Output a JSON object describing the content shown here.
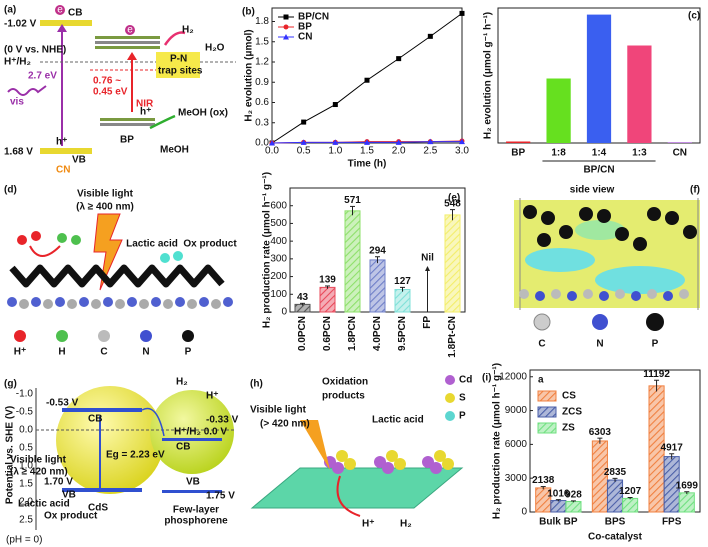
{
  "chart_data": [
    {
      "type": "line",
      "panel_label": "(b)",
      "xlabel": "Time (h)",
      "ylabel": "H₂ evolution (μmol)",
      "x": [
        0,
        0.5,
        1,
        1.5,
        2,
        2.5,
        3
      ],
      "series": [
        {
          "name": "BP/CN",
          "color": "#000000",
          "marker": "square",
          "values": [
            0,
            0.31,
            0.57,
            0.93,
            1.25,
            1.58,
            1.92
          ]
        },
        {
          "name": "BP",
          "color": "#e8242a",
          "marker": "circle",
          "values": [
            0,
            0.01,
            0.01,
            0.02,
            0.02,
            0.02,
            0.03
          ]
        },
        {
          "name": "CN",
          "color": "#3333ff",
          "marker": "triangle",
          "values": [
            0,
            0.01,
            0.01,
            0.01,
            0.01,
            0.02,
            0.02
          ]
        }
      ],
      "xlim": [
        0,
        3
      ],
      "xticks": [
        {
          "value": 0,
          "label": "0.0"
        },
        0.5,
        {
          "value": 1,
          "label": "1.0"
        },
        1.5,
        {
          "value": 2,
          "label": "2.0"
        },
        2.5,
        {
          "value": 3,
          "label": "3.0"
        }
      ],
      "ylim": [
        0,
        2.0
      ],
      "yticks": [
        {
          "value": 0,
          "label": "0.0"
        },
        0.3,
        0.6,
        0.9,
        1.2,
        1.5,
        1.8
      ],
      "legend": "upper left"
    },
    {
      "type": "bar",
      "panel_label": "(c)",
      "ylabel": "H₂ evolution (μmol g⁻¹ h⁻¹)",
      "categories": [
        "BP",
        "1:8",
        "1:4",
        "1:3",
        "CN"
      ],
      "group_label": "BP/CN",
      "values": [
        5,
        215,
        428,
        325,
        2
      ],
      "colors": [
        "#e8242a",
        "#66e01f",
        "#3a5ff0",
        "#f0457a",
        "#9b3fd0"
      ],
      "ylim": [
        0,
        450
      ]
    },
    {
      "type": "bar",
      "panel_label": "(e)",
      "ylabel": "H₂ production rate (μmol h⁻¹ g⁻¹)",
      "categories": [
        "0.0PCN",
        "0.6PCN",
        "1.8PCN",
        "4.0PCN",
        "9.5PCN",
        "FP",
        "1.8Pt-CN"
      ],
      "values": [
        43,
        139,
        571,
        294,
        127,
        null,
        548
      ],
      "value_labels": [
        "43",
        "139",
        "571",
        "294",
        "127",
        "Nil",
        "548"
      ],
      "errors": [
        6,
        8,
        25,
        18,
        12,
        null,
        30
      ],
      "colors": [
        "#555555",
        "#e8485a",
        "#8ee06a",
        "#6f7fc8",
        "#7fe0d8",
        "#999999",
        "#f3ee6a"
      ],
      "hatched": true,
      "ylim": [
        0,
        700
      ],
      "yticks": [
        0,
        100,
        200,
        300,
        400,
        500,
        600
      ]
    },
    {
      "type": "bar",
      "panel_label": "(i)",
      "inset_label": "a",
      "xlabel": "Co-catalyst",
      "ylabel": "H₂ production rate (μmol h⁻¹ g⁻¹)",
      "categories": [
        "Bulk BP",
        "BPS",
        "FPS"
      ],
      "series": [
        {
          "name": "CS",
          "color": "#f08040",
          "values": [
            2138,
            6303,
            11192
          ],
          "errors": [
            120,
            250,
            500
          ]
        },
        {
          "name": "ZCS",
          "color": "#4a5fa8",
          "values": [
            1016,
            2835,
            4917
          ],
          "errors": [
            80,
            150,
            250
          ]
        },
        {
          "name": "ZS",
          "color": "#6fe07f",
          "values": [
            928,
            1207,
            1699
          ],
          "errors": [
            60,
            80,
            100
          ]
        }
      ],
      "hatched": true,
      "ylim": [
        0,
        12600
      ],
      "yticks": [
        0,
        3000,
        6000,
        9000,
        12000
      ],
      "legend": "upper left"
    }
  ],
  "diagram_a": {
    "label": "(a)",
    "texts": [
      "-1.02 V",
      "CB",
      "(0 V vs. NHE)",
      "H⁺/H₂",
      "2.7 eV",
      "vis",
      "0.76 ~",
      "0.45 eV",
      "NIR",
      "P-N",
      "trap sites",
      "H₂",
      "H₂O",
      "BP",
      "h⁺",
      "MeOH (ox)",
      "MeOH",
      "1.68 V",
      "VB",
      "h⁺",
      "CN",
      "e",
      "e"
    ]
  },
  "diagram_d": {
    "label": "(d)",
    "light": "Visible light",
    "wavelength": "(λ ≥ 400 nm)",
    "reactant": "Lactic acid",
    "product": "Ox product",
    "legend": [
      "H⁺",
      "H",
      "C",
      "N",
      "P"
    ]
  },
  "diagram_f": {
    "label": "(f)",
    "view": "side view",
    "legend": [
      "C",
      "N",
      "P"
    ]
  },
  "diagram_g": {
    "label": "(g)",
    "axis_label": "Potential vs. SHE (V)",
    "axis_ticks": [
      "-1.0",
      "-0.5",
      "0.0",
      "0.5",
      "1.0",
      "1.5",
      "2.0",
      "2.5"
    ],
    "texts": [
      "-0.53 V",
      "CB",
      "H₂",
      "H⁺",
      "-0.33 V",
      "CB",
      "H⁺/H₂ 0.0 V",
      "Visible light",
      "(λ ≥ 420 nm)",
      "Eg = 2.23 eV",
      "1.70 V",
      "VB",
      "VB",
      "1.75 V",
      "Lactic acid",
      "Ox product",
      "CdS",
      "Few-layer",
      "phosphorene",
      "(pH = 0)"
    ]
  },
  "diagram_h": {
    "label": "(h)",
    "light": "Visible light",
    "wavelength": "(> 420 nm)",
    "products": [
      "Oxidation",
      "products"
    ],
    "reactant": "Lactic acid",
    "legend": [
      "Cd",
      "S",
      "P"
    ],
    "ion": "H⁺",
    "gas": "H₂"
  }
}
